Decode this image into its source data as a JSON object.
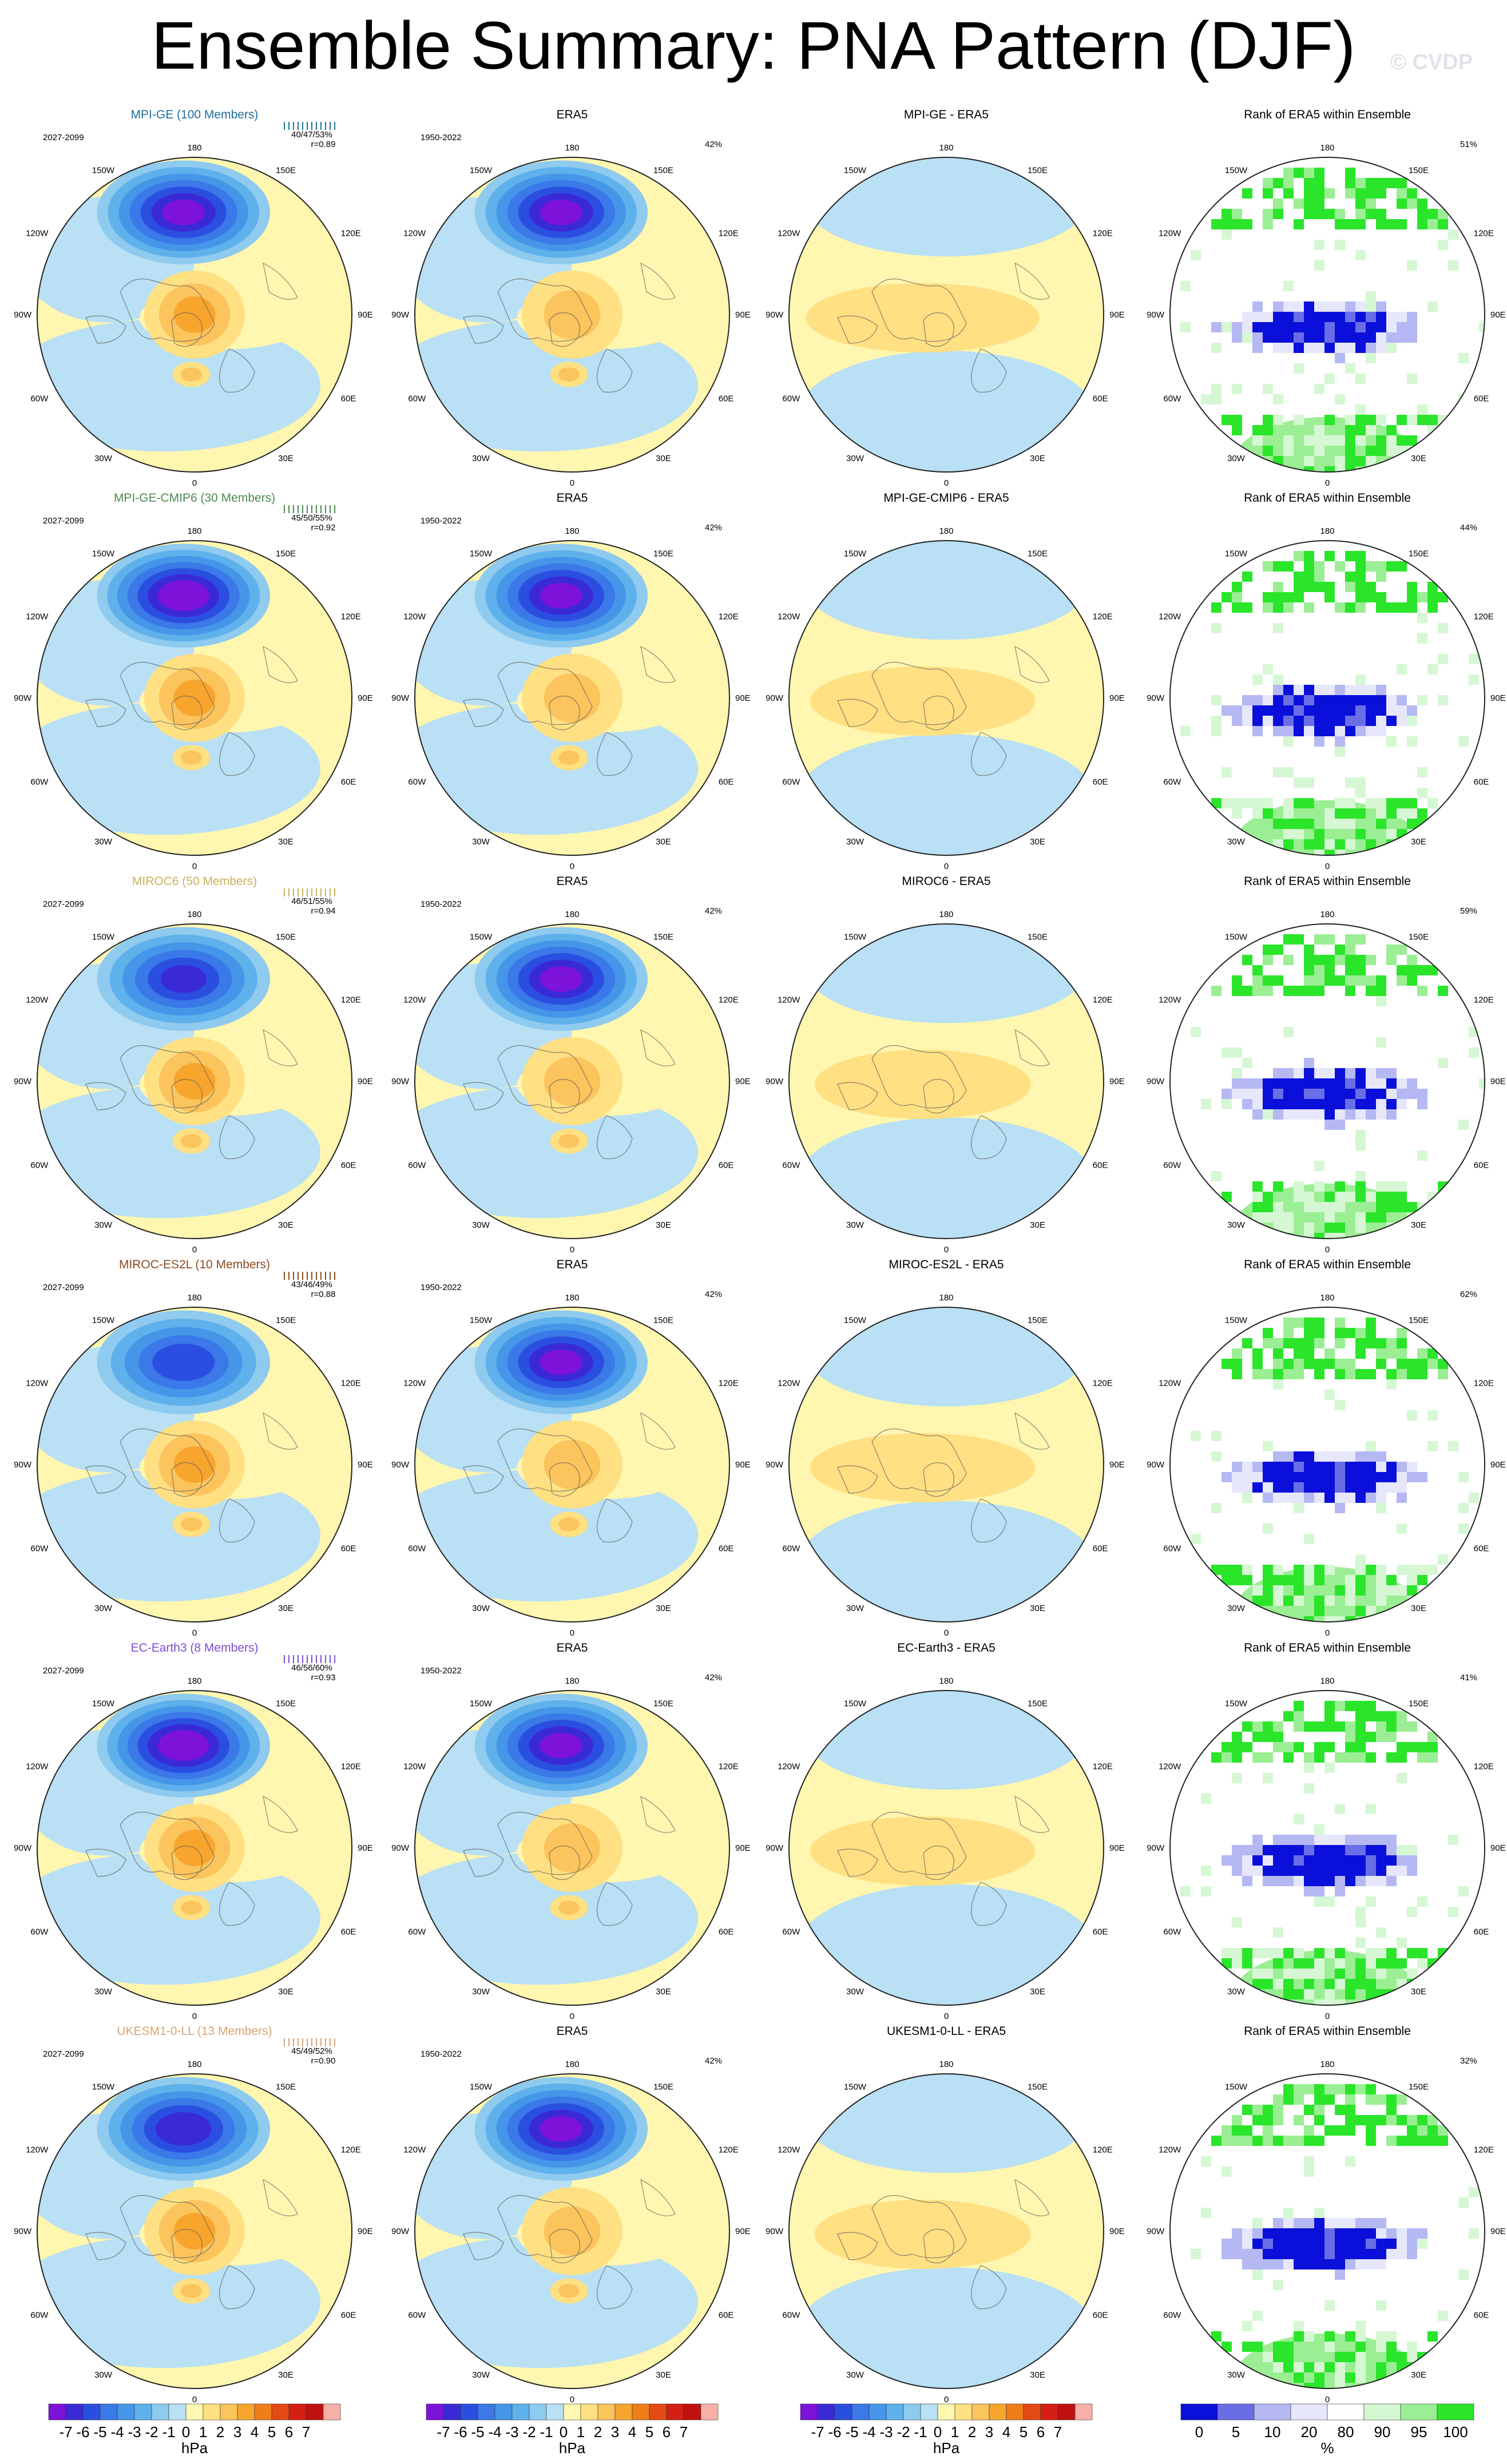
{
  "page": {
    "title": "Ensemble Summary: PNA Pattern (DJF)",
    "copyright": "© CVDP"
  },
  "columns": [
    "model",
    "obs",
    "diff",
    "rank"
  ],
  "lon_labels": {
    "top": "180",
    "top_right": "150E",
    "upper_right": "120E",
    "right": "90E",
    "lower_right": "60E",
    "bottom_right": "30E",
    "bottom": "0",
    "bottom_left": "30W",
    "lower_left": "60W",
    "left": "90W",
    "upper_left": "120W",
    "top_left": "150W"
  },
  "rows": [
    {
      "model": "MPI-GE (100 Members)",
      "color": "#1f6f9a",
      "model_period": "2027-2099",
      "stats": "40/47/53%",
      "r": "r=0.89",
      "obs_title": "ERA5",
      "obs_period": "1950-2022",
      "obs_pct": "42%",
      "diff_title": "MPI-GE - ERA5",
      "rank_title": "Rank of ERA5 within Ensemble",
      "rank_pct": "51%",
      "model_low": -7,
      "diff_mag": 0.35
    },
    {
      "model": "MPI-GE-CMIP6 (30 Members)",
      "color": "#4b8a53",
      "model_period": "2027-2099",
      "stats": "45/50/55%",
      "r": "r=0.92",
      "obs_title": "ERA5",
      "obs_period": "1950-2022",
      "obs_pct": "42%",
      "diff_title": "MPI-GE-CMIP6 - ERA5",
      "rank_title": "Rank of ERA5 within Ensemble",
      "rank_pct": "44%",
      "model_low": -7.5,
      "diff_mag": 0.3
    },
    {
      "model": "MIROC6 (50 Members)",
      "color": "#c9b25a",
      "model_period": "2027-2099",
      "stats": "46/51/55%",
      "r": "r=0.94",
      "obs_title": "ERA5",
      "obs_period": "1950-2022",
      "obs_pct": "42%",
      "diff_title": "MIROC6 - ERA5",
      "rank_title": "Rank of ERA5 within Ensemble",
      "rank_pct": "59%",
      "model_low": -6,
      "diff_mag": 0.25
    },
    {
      "model": "MIROC-ES2L (10 Members)",
      "color": "#8a4b1e",
      "model_period": "2027-2099",
      "stats": "43/46/49%",
      "r": "r=0.88",
      "obs_title": "ERA5",
      "obs_period": "1950-2022",
      "obs_pct": "42%",
      "diff_title": "MIROC-ES2L - ERA5",
      "rank_title": "Rank of ERA5 within Ensemble",
      "rank_pct": "62%",
      "model_low": -5.5,
      "diff_mag": 0.3
    },
    {
      "model": "EC-Earth3 (8 Members)",
      "color": "#7b4fd1",
      "model_period": "2027-2099",
      "stats": "46/56/60%",
      "r": "r=0.93",
      "obs_title": "ERA5",
      "obs_period": "1950-2022",
      "obs_pct": "42%",
      "diff_title": "EC-Earth3 - ERA5",
      "rank_title": "Rank of ERA5 within Ensemble",
      "rank_pct": "41%",
      "model_low": -7.5,
      "diff_mag": 0.3
    },
    {
      "model": "UKESM1-0-LL (13 Members)",
      "color": "#d9a272",
      "model_period": "2027-2099",
      "stats": "45/49/52%",
      "r": "r=0.90",
      "obs_title": "ERA5",
      "obs_period": "1950-2022",
      "obs_pct": "42%",
      "diff_title": "UKESM1-0-LL - ERA5",
      "rank_title": "Rank of ERA5 within Ensemble",
      "rank_pct": "32%",
      "model_low": -6.5,
      "diff_mag": 0.25
    }
  ],
  "colorbars": {
    "hpa_ticks": [
      "-7",
      "-6",
      "-5",
      "-4",
      "-3",
      "-2",
      "-1",
      "0",
      "1",
      "2",
      "3",
      "4",
      "5",
      "6",
      "7"
    ],
    "hpa_colors": [
      "#7d12d9",
      "#3a2ad6",
      "#2a4fe0",
      "#3b78e8",
      "#4596e8",
      "#5fb1ec",
      "#8fcaef",
      "#b9e0f4",
      "#fff6b0",
      "#ffe083",
      "#fbc45c",
      "#f7a52d",
      "#ee7d1a",
      "#e44a13",
      "#d41f14",
      "#c11010",
      "#f7b0a8"
    ],
    "hpa_unit": "hPa",
    "rank_ticks": [
      "0",
      "5",
      "10",
      "20",
      "80",
      "90",
      "95",
      "100"
    ],
    "rank_colors": [
      "#0a10d9",
      "#6a6ee6",
      "#b5b8f2",
      "#e6e7fb",
      "#ffffff",
      "#d6f7d3",
      "#9bee94",
      "#2ae52a"
    ],
    "rank_unit": "%"
  }
}
